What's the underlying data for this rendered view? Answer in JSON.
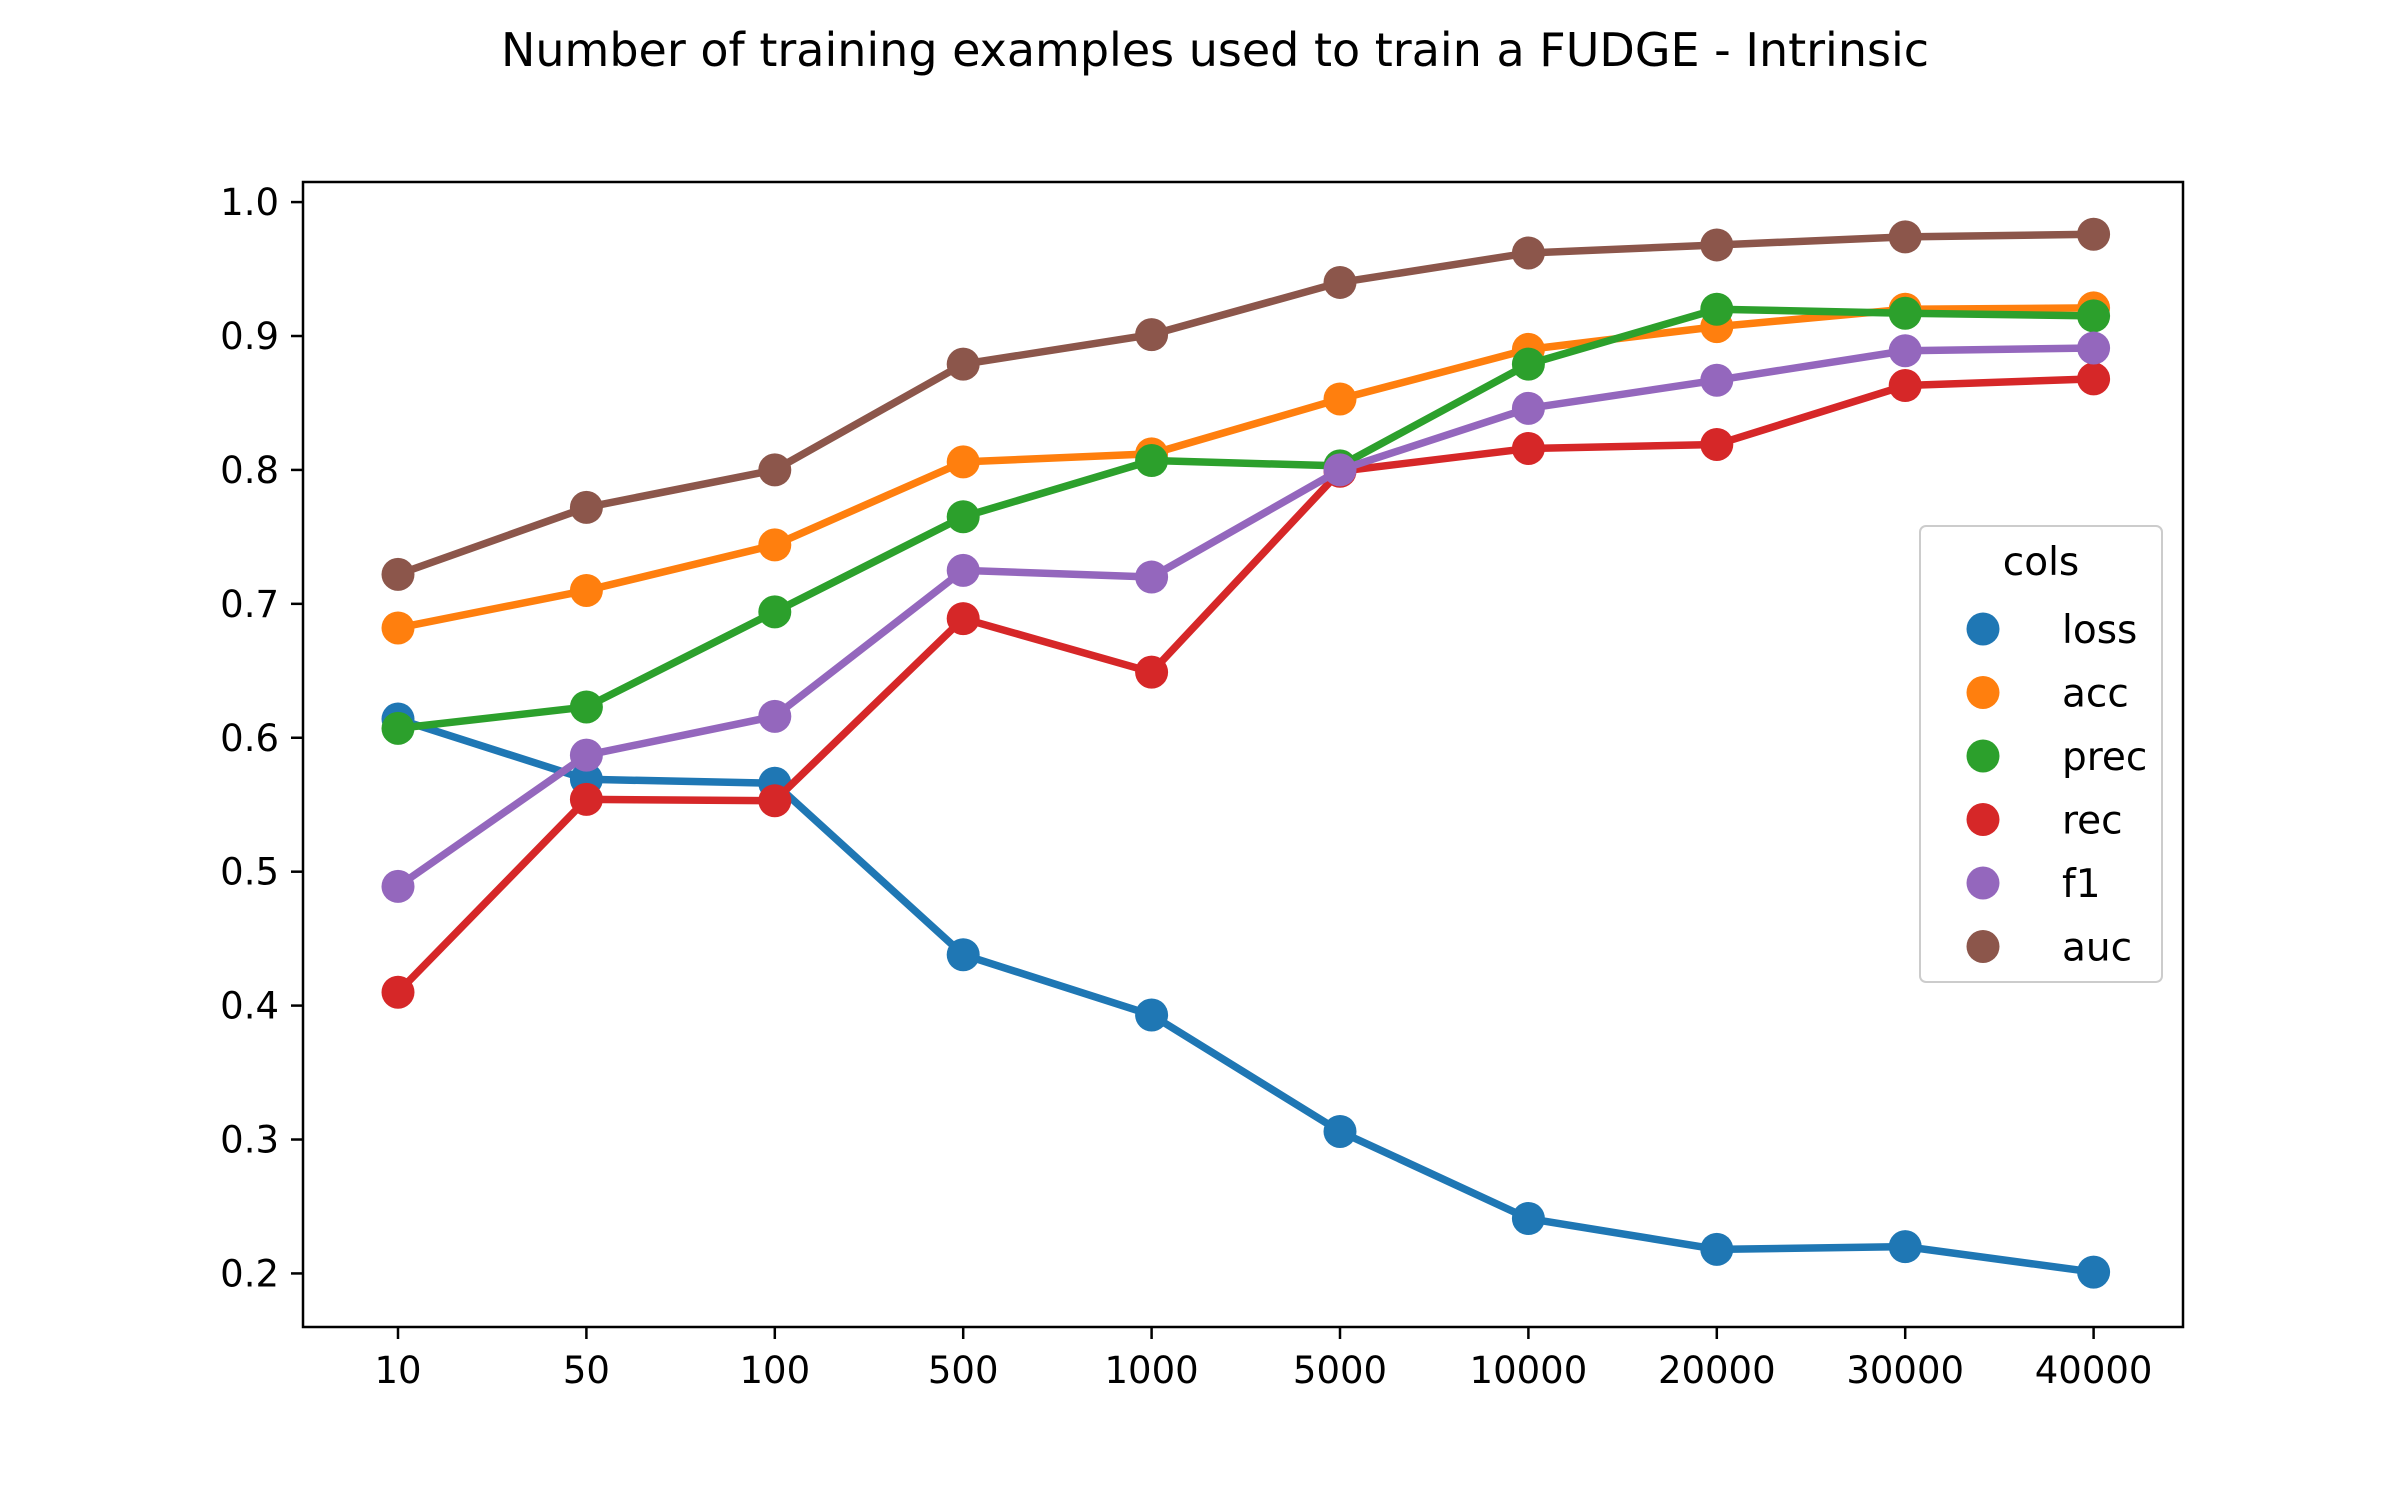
{
  "chart_data": {
    "type": "line",
    "title": "Number of training examples used to train a FUDGE - Intrinsic",
    "xlabel": "",
    "ylabel": "",
    "categories": [
      "10",
      "50",
      "100",
      "500",
      "1000",
      "5000",
      "10000",
      "20000",
      "30000",
      "40000"
    ],
    "ylim": [
      0.16,
      1.015
    ],
    "yticks": [
      "0.2",
      "0.3",
      "0.4",
      "0.5",
      "0.6",
      "0.7",
      "0.8",
      "0.9",
      "1.0"
    ],
    "grid": false,
    "legend": {
      "title": "cols",
      "placement": "center-right"
    },
    "series": [
      {
        "name": "loss",
        "color": "#1f77b4",
        "values": [
          0.614,
          0.569,
          0.566,
          0.438,
          0.393,
          0.306,
          0.241,
          0.218,
          0.22,
          0.201
        ]
      },
      {
        "name": "acc",
        "color": "#ff7f0e",
        "values": [
          0.682,
          0.71,
          0.744,
          0.806,
          0.812,
          0.853,
          0.89,
          0.907,
          0.92,
          0.921
        ]
      },
      {
        "name": "prec",
        "color": "#2ca02c",
        "values": [
          0.607,
          0.623,
          0.694,
          0.765,
          0.807,
          0.803,
          0.879,
          0.92,
          0.917,
          0.915
        ]
      },
      {
        "name": "rec",
        "color": "#d62728",
        "values": [
          0.41,
          0.554,
          0.553,
          0.689,
          0.649,
          0.799,
          0.816,
          0.819,
          0.863,
          0.868
        ]
      },
      {
        "name": "f1",
        "color": "#9467bd",
        "values": [
          0.489,
          0.587,
          0.616,
          0.725,
          0.72,
          0.8,
          0.846,
          0.867,
          0.889,
          0.891
        ]
      },
      {
        "name": "auc",
        "color": "#8c564b",
        "values": [
          0.722,
          0.772,
          0.8,
          0.879,
          0.901,
          0.94,
          0.962,
          0.968,
          0.974,
          0.976
        ]
      }
    ]
  }
}
